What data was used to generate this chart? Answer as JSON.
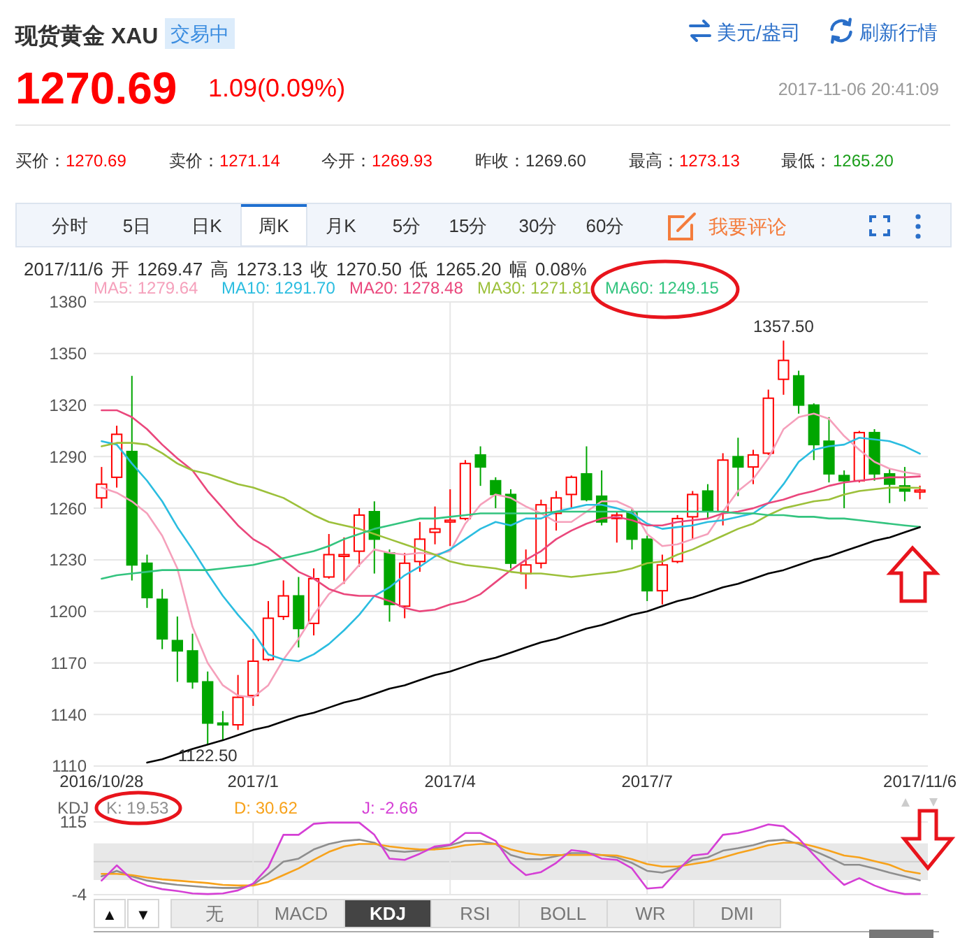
{
  "chart_data": [
    {
      "type": "other",
      "title": "现货黄金 XAU",
      "annotations": [
        "交易中",
        "美元/盎司",
        "刷新行情",
        "1270.69",
        "1.09(0.09%)",
        "2017-11-06 20:41:09",
        "买价：",
        "1270.69",
        "卖价：",
        "1271.14",
        "今开：",
        "1269.93",
        "昨收：",
        "1269.60",
        "最高：",
        "1273.13",
        "最低：",
        "1265.20",
        "分时",
        "5日",
        "日K",
        "周K",
        "月K",
        "5分",
        "15分",
        "30分",
        "60分",
        "我要评论"
      ]
    },
    {
      "type": "candlestick",
      "subtitle": "2017/11/6 开 1269.47 高 1273.13 收 1270.50 低 1265.20 幅 0.08%",
      "categories": [
        "2016/10/28",
        null,
        null,
        null,
        null,
        null,
        null,
        null,
        null,
        null,
        "2017/1",
        null,
        null,
        null,
        null,
        null,
        null,
        null,
        null,
        null,
        null,
        null,
        null,
        "2017/4",
        null,
        null,
        null,
        null,
        null,
        null,
        null,
        null,
        null,
        null,
        null,
        null,
        "2017/7",
        null,
        null,
        null,
        null,
        null,
        null,
        null,
        null,
        null,
        null,
        null,
        null,
        null,
        null,
        null,
        null,
        null,
        "2017/11/6"
      ],
      "ohlc": [
        [
          1266,
          1284,
          1260,
          1274
        ],
        [
          1278,
          1308,
          1272,
          1303
        ],
        [
          1293,
          1337,
          1218,
          1227
        ],
        [
          1228,
          1233,
          1202,
          1208
        ],
        [
          1207,
          1213,
          1178,
          1184
        ],
        [
          1183,
          1197,
          1159,
          1177
        ],
        [
          1177,
          1187,
          1155,
          1159
        ],
        [
          1159,
          1165,
          1122.5,
          1135
        ],
        [
          1135,
          1142,
          1125,
          1134
        ],
        [
          1134,
          1163,
          1131,
          1150
        ],
        [
          1151,
          1184,
          1145,
          1171
        ],
        [
          1172,
          1206,
          1171,
          1196
        ],
        [
          1197,
          1218,
          1195,
          1209
        ],
        [
          1209,
          1220,
          1179,
          1190
        ],
        [
          1193,
          1225,
          1186,
          1219
        ],
        [
          1220,
          1245,
          1219,
          1233
        ],
        [
          1232,
          1243,
          1216,
          1233
        ],
        [
          1235,
          1260,
          1226,
          1256
        ],
        [
          1258,
          1264,
          1222,
          1242
        ],
        [
          1234,
          1236,
          1194,
          1204
        ],
        [
          1203,
          1234,
          1196,
          1228
        ],
        [
          1229,
          1252,
          1223,
          1242
        ],
        [
          1246,
          1261,
          1239,
          1248
        ],
        [
          1252,
          1271,
          1238,
          1253
        ],
        [
          1254,
          1288,
          1253,
          1286
        ],
        [
          1291,
          1296,
          1273,
          1284
        ],
        [
          1276,
          1278,
          1260,
          1268
        ],
        [
          1268,
          1271,
          1225,
          1228
        ],
        [
          1222,
          1236,
          1213,
          1227
        ],
        [
          1228,
          1265,
          1225,
          1262
        ],
        [
          1257,
          1270,
          1247,
          1266
        ],
        [
          1268,
          1279,
          1260,
          1278
        ],
        [
          1280,
          1296,
          1264,
          1265
        ],
        [
          1267,
          1282,
          1250,
          1252
        ],
        [
          1254,
          1258,
          1240,
          1256
        ],
        [
          1258,
          1260,
          1236,
          1242
        ],
        [
          1242,
          1244,
          1206,
          1212
        ],
        [
          1212,
          1233,
          1204,
          1227
        ],
        [
          1229,
          1256,
          1228,
          1254
        ],
        [
          1255,
          1270,
          1242,
          1268
        ],
        [
          1270,
          1274,
          1254,
          1258
        ],
        [
          1258,
          1292,
          1250,
          1288
        ],
        [
          1290,
          1301,
          1267,
          1284
        ],
        [
          1284,
          1294,
          1274,
          1291
        ],
        [
          1292,
          1329,
          1291,
          1324
        ],
        [
          1335,
          1357.5,
          1326,
          1346
        ],
        [
          1337,
          1340,
          1315,
          1320
        ],
        [
          1320,
          1321,
          1288,
          1297
        ],
        [
          1299,
          1313,
          1275,
          1280
        ],
        [
          1279,
          1282,
          1260,
          1276
        ],
        [
          1276,
          1305,
          1275,
          1304
        ],
        [
          1304,
          1306,
          1276,
          1280
        ],
        [
          1280,
          1283,
          1263,
          1274
        ],
        [
          1273,
          1284,
          1264,
          1270
        ],
        [
          1269.47,
          1273.13,
          1265.2,
          1270.5
        ]
      ],
      "colors": [
        "#ff0000",
        "#ff0000",
        "#00a600",
        "#00a600",
        "#00a600",
        "#00a600",
        "#00a600",
        "#00a600",
        "#00a600",
        "#ff0000",
        "#ff0000",
        "#ff0000",
        "#ff0000",
        "#00a600",
        "#ff0000",
        "#ff0000",
        "#ff0000",
        "#ff0000",
        "#00a600",
        "#00a600",
        "#ff0000",
        "#ff0000",
        "#ff0000",
        "#ff0000",
        "#ff0000",
        "#00a600",
        "#00a600",
        "#00a600",
        "#ff0000",
        "#ff0000",
        "#ff0000",
        "#ff0000",
        "#00a600",
        "#00a600",
        "#ff0000",
        "#00a600",
        "#00a600",
        "#ff0000",
        "#ff0000",
        "#ff0000",
        "#00a600",
        "#ff0000",
        "#00a600",
        "#ff0000",
        "#ff0000",
        "#ff0000",
        "#00a600",
        "#00a600",
        "#00a600",
        "#00a600",
        "#ff0000",
        "#00a600",
        "#00a600",
        "#00a600",
        "#ff0000"
      ],
      "series": [
        {
          "name": "MA5: 1279.64",
          "type": "line",
          "color": "#f5a0bb",
          "values": [
            1272,
            1269,
            1264,
            1257,
            1244,
            1225,
            1191,
            1170,
            1157,
            1151,
            1150,
            1157,
            1172,
            1184,
            1198,
            1210,
            1217,
            1227,
            1236,
            1234,
            1233,
            1234,
            1233,
            1235,
            1251,
            1262,
            1268,
            1266,
            1261,
            1257,
            1252,
            1252,
            1258,
            1264,
            1264,
            1260,
            1245,
            1238,
            1239,
            1242,
            1245,
            1258,
            1270,
            1277,
            1289,
            1306,
            1313,
            1315,
            1312,
            1302,
            1294,
            1287,
            1283,
            1281,
            1279.64
          ]
        },
        {
          "name": "MA10: 1291.70",
          "type": "line",
          "color": "#2bbde0",
          "values": [
            1299,
            1297,
            1286,
            1276,
            1264,
            1249,
            1236,
            1222,
            1209,
            1198,
            1188,
            1175,
            1172,
            1171,
            1175,
            1181,
            1189,
            1198,
            1209,
            1214,
            1221,
            1226,
            1232,
            1236,
            1242,
            1248,
            1252,
            1250,
            1254,
            1254,
            1258,
            1260,
            1262,
            1262,
            1260,
            1257,
            1251,
            1248,
            1249,
            1250,
            1252,
            1253,
            1255,
            1257,
            1263,
            1274,
            1287,
            1294,
            1296,
            1297,
            1301,
            1300,
            1299,
            1296,
            1291.7
          ]
        },
        {
          "name": "MA20: 1278.48",
          "type": "line",
          "color": "#ea477c",
          "values": [
            1317,
            1317,
            1313,
            1306,
            1297,
            1289,
            1282,
            1270,
            1260,
            1250,
            1242,
            1237,
            1230,
            1223,
            1219,
            1213,
            1210,
            1209,
            1209,
            1206,
            1202,
            1200,
            1201,
            1204,
            1206,
            1210,
            1217,
            1224,
            1230,
            1235,
            1242,
            1247,
            1251,
            1254,
            1255,
            1253,
            1250,
            1250,
            1252,
            1253,
            1254,
            1257,
            1258,
            1260,
            1263,
            1265,
            1268,
            1270,
            1273,
            1275,
            1276,
            1277,
            1278,
            1278,
            1278.48
          ]
        },
        {
          "name": "MA30: 1271.81",
          "type": "line",
          "color": "#9cc03a",
          "values": [
            1296,
            1298,
            1298,
            1297,
            1292,
            1286,
            1282,
            1280,
            1277,
            1274,
            1272,
            1269,
            1266,
            1261,
            1256,
            1252,
            1250,
            1248,
            1245,
            1242,
            1239,
            1236,
            1233,
            1229,
            1227,
            1226,
            1225,
            1223,
            1222,
            1222,
            1221,
            1220,
            1221,
            1222,
            1223,
            1225,
            1228,
            1229,
            1233,
            1236,
            1240,
            1244,
            1248,
            1251,
            1256,
            1260,
            1262,
            1264,
            1265,
            1268,
            1270,
            1271,
            1272,
            1272,
            1271.81
          ]
        },
        {
          "name": "MA60: 1249.15",
          "type": "line",
          "color": "#33c47f",
          "values": [
            1219,
            1221,
            1222,
            1223,
            1224,
            1224,
            1224,
            1224,
            1225,
            1226,
            1227,
            1229,
            1231,
            1233,
            1235,
            1238,
            1242,
            1245,
            1248,
            1250,
            1252,
            1254,
            1254,
            1255,
            1256,
            1257,
            1257,
            1257,
            1257,
            1257,
            1258,
            1258,
            1258,
            1258,
            1258,
            1258,
            1258,
            1258,
            1258,
            1258,
            1258,
            1258,
            1257,
            1257,
            1256,
            1256,
            1255,
            1255,
            1254,
            1254,
            1253,
            1252,
            1251,
            1250,
            1249.15
          ]
        },
        {
          "type": "line",
          "color": "#000000",
          "values": [
            null,
            null,
            null,
            1112,
            1114,
            1117,
            1120,
            1122.5,
            1125,
            1128,
            1131,
            1133,
            1136,
            1139,
            1141,
            1144,
            1147,
            1149,
            1152,
            1155,
            1157,
            1160,
            1163,
            1165,
            1168,
            1171,
            1173,
            1176,
            1179,
            1182,
            1184,
            1187,
            1190,
            1192,
            1195,
            1198,
            1200,
            1203,
            1206,
            1208,
            1211,
            1214,
            1216,
            1219,
            1222,
            1224,
            1227,
            1230,
            1232,
            1235,
            1238,
            1241,
            1243,
            1246,
            1249
          ]
        }
      ],
      "ylim": [
        1110,
        1380
      ],
      "yticks": [
        1110,
        1140,
        1170,
        1200,
        1230,
        1260,
        1290,
        1320,
        1350,
        1380
      ],
      "grid": true,
      "legend": "top left",
      "annotations": [
        {
          "text": "1357.50",
          "y": 1357.5
        },
        {
          "text": "1122.50",
          "y": 1122.5
        }
      ]
    },
    {
      "type": "line",
      "title": "KDJ",
      "categories": [
        "2016/10/28",
        null,
        null,
        null,
        null,
        null,
        null,
        null,
        null,
        null,
        "2017/1",
        null,
        null,
        null,
        null,
        null,
        null,
        null,
        null,
        null,
        null,
        null,
        null,
        "2017/4",
        null,
        null,
        null,
        null,
        null,
        null,
        null,
        null,
        null,
        null,
        null,
        null,
        "2017/7",
        null,
        null,
        null,
        null,
        null,
        null,
        null,
        null,
        null,
        null,
        null,
        null,
        null,
        null,
        null,
        null,
        null,
        "2017/11/6"
      ],
      "series": [
        {
          "name": "K: 19.53",
          "color": "#8e8e8e",
          "values": [
            26,
            35,
            26,
            19,
            15,
            12,
            10,
            8,
            7,
            7,
            12,
            30,
            50,
            55,
            70,
            79,
            84,
            86,
            81,
            68,
            66,
            68,
            72,
            77,
            84,
            84,
            79,
            61,
            54,
            54,
            59,
            64,
            64,
            61,
            57,
            48,
            35,
            32,
            39,
            53,
            57,
            68,
            72,
            77,
            84,
            86,
            79,
            68,
            57,
            45,
            45,
            39,
            32,
            26,
            19.53
          ]
        },
        {
          "name": "D: 30.62",
          "color": "#f7a21b",
          "values": [
            30,
            30,
            28,
            24,
            21,
            19,
            17,
            15,
            12,
            11,
            11,
            17,
            28,
            39,
            53,
            66,
            75,
            79,
            79,
            75,
            72,
            70,
            70,
            72,
            77,
            79,
            79,
            70,
            64,
            61,
            61,
            61,
            61,
            61,
            60,
            54,
            46,
            42,
            42,
            46,
            50,
            57,
            64,
            70,
            77,
            81,
            81,
            75,
            68,
            60,
            57,
            51,
            45,
            35,
            30.62
          ]
        },
        {
          "name": "J: -2.66",
          "color": "#d53fd5",
          "values": [
            19,
            44,
            21,
            11,
            5,
            2,
            -2,
            -3,
            -2,
            3,
            14,
            41,
            94,
            94,
            112,
            114,
            114,
            114,
            94,
            55,
            53,
            63,
            75,
            78,
            97,
            97,
            84,
            48,
            28,
            33,
            48,
            69,
            66,
            55,
            53,
            39,
            6,
            8,
            35,
            60,
            63,
            94,
            97,
            103,
            111,
            108,
            88,
            61,
            35,
            12,
            23,
            11,
            2,
            -3,
            -2.66
          ]
        }
      ],
      "ylim": [
        -4,
        115
      ],
      "yticks": [
        -4,
        115
      ],
      "grid": true,
      "legend": "top left",
      "tick_labels": "y",
      "bands": [
        {
          "axis": "y",
          "from": 20,
          "to": 80,
          "color": "#e8e8e8"
        }
      ],
      "ref_lines": [
        {
          "axis": "y",
          "value": 50,
          "color": "#cfcfcf"
        }
      ],
      "annotations": [
        "▲",
        "▼",
        "无",
        "MACD",
        "KDJ",
        "RSI",
        "BOLL",
        "WR",
        "DMI"
      ]
    }
  ]
}
